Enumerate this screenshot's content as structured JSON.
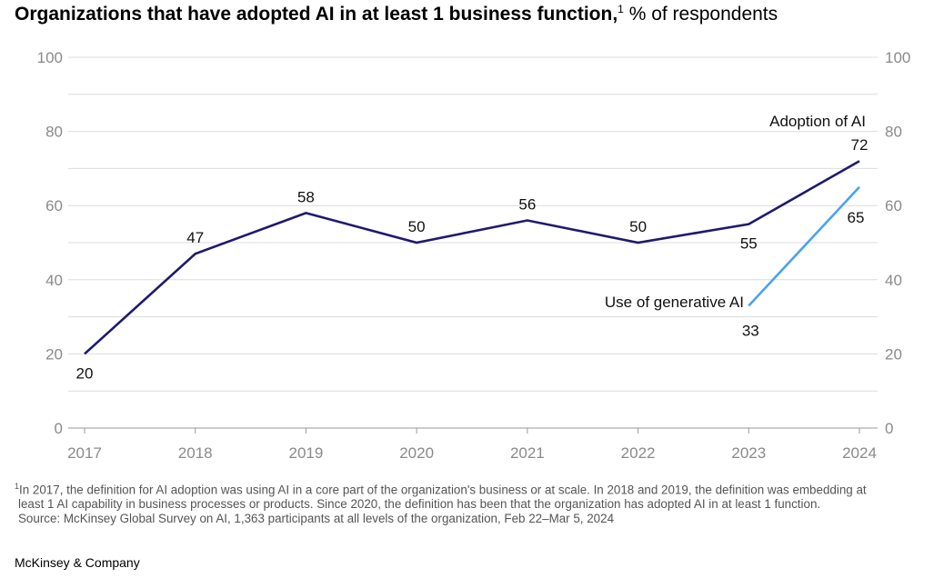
{
  "header": {
    "title": "Organizations that have adopted AI in at least 1 business function,",
    "title_sup": "1",
    "unit": " % of respondents"
  },
  "chart_data": {
    "type": "line",
    "title": "Organizations that have adopted AI in at least 1 business function,",
    "ylabel": "% of respondents",
    "ylim": [
      0,
      100
    ],
    "yticks": [
      "0",
      "20",
      "40",
      "60",
      "80",
      "100"
    ],
    "x": [
      "2017",
      "2018",
      "2019",
      "2020",
      "2021",
      "2022",
      "2023",
      "2024"
    ],
    "grid": true,
    "series": [
      {
        "name": "Adoption of AI",
        "color": "#1e1a6e",
        "x": [
          "2017",
          "2018",
          "2019",
          "2020",
          "2021",
          "2022",
          "2023",
          "2024"
        ],
        "values": [
          20,
          47,
          58,
          50,
          56,
          50,
          55,
          72
        ],
        "labels": [
          "20",
          "47",
          "58",
          "50",
          "56",
          "50",
          "55",
          "72"
        ]
      },
      {
        "name": "Use of generative AI",
        "color": "#4aa3ec",
        "x": [
          "2023",
          "2024"
        ],
        "values": [
          33,
          65
        ],
        "labels": [
          "33",
          "65"
        ]
      }
    ]
  },
  "footnote": {
    "line1": "In 2017, the definition for AI adoption was using AI in a core part of the organization's business or at scale. In 2018 and 2019, the definition was embedding at",
    "line1_sup": "1",
    "line2": "least 1 AI capability in business processes or products. Since 2020, the definition has been that the organization has adopted AI in at least 1 function.",
    "source": "Source: McKinsey Global Survey on AI, 1,363 participants at all levels of the organization, Feb 22–Mar 5, 2024"
  },
  "brand": "McKinsey & Company"
}
